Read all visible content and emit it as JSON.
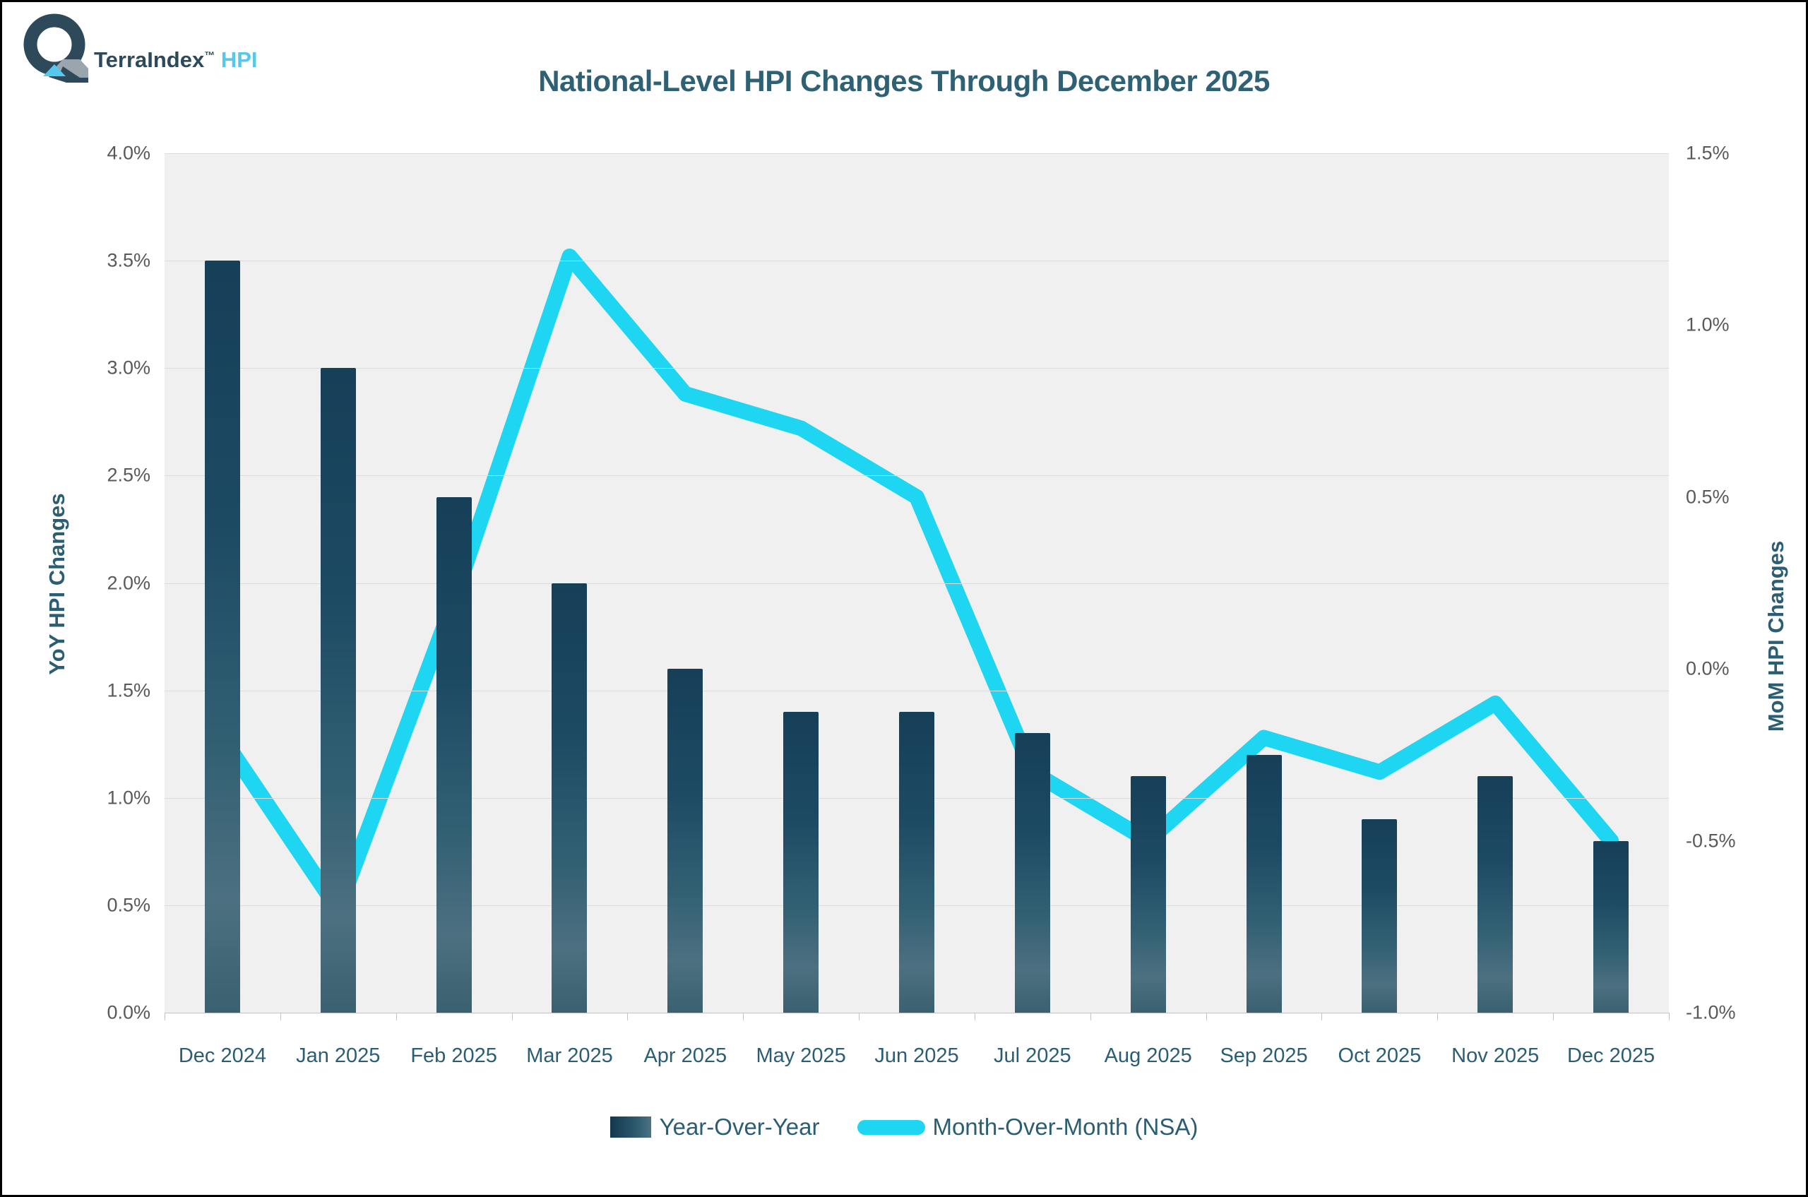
{
  "logo": {
    "brand": "TerraIndex",
    "tm": "™",
    "product": "HPI"
  },
  "title": "National-Level HPI Changes Through December 2025",
  "chart_data": {
    "type": "combo",
    "categories": [
      "Dec 2024",
      "Jan 2025",
      "Feb 2025",
      "Mar 2025",
      "Apr 2025",
      "May 2025",
      "Jun 2025",
      "Jul 2025",
      "Aug 2025",
      "Sep 2025",
      "Oct 2025",
      "Nov 2025",
      "Dec 2025"
    ],
    "series": [
      {
        "name": "Year-Over-Year",
        "type": "bar",
        "axis": "left",
        "values": [
          3.5,
          3.0,
          2.4,
          2.0,
          1.6,
          1.4,
          1.4,
          1.3,
          1.1,
          1.2,
          0.9,
          1.1,
          0.8
        ]
      },
      {
        "name": "Month-Over-Month (NSA)",
        "type": "line",
        "axis": "right",
        "values": [
          -0.2,
          -0.7,
          0.2,
          1.2,
          0.8,
          0.7,
          0.5,
          -0.3,
          -0.5,
          -0.2,
          -0.3,
          -0.1,
          -0.5
        ]
      }
    ],
    "left_axis": {
      "title": "YoY HPI Changes",
      "min": 0,
      "max": 4,
      "tick_labels": [
        "4.0%",
        "3.5%",
        "3.0%",
        "2.5%",
        "2.0%",
        "1.5%",
        "1.0%",
        "0.5%",
        "0.0%"
      ]
    },
    "right_axis": {
      "title": "MoM HPI Changes",
      "min": -1,
      "max": 1.5,
      "tick_labels": [
        "1.5%",
        "1.0%",
        "0.5%",
        "0.0%",
        "-0.5%",
        "-1.0%"
      ]
    },
    "grid": true,
    "legend_position": "bottom",
    "colors": {
      "bar_top": "#163f58",
      "bar_bottom": "#3a6170",
      "line": "#1ed5f2",
      "plot_bg": "#f0f0f0",
      "grid": "#dcdcdc",
      "title": "#2f6175",
      "tick_text": "#595959",
      "category_text": "#2b5e72",
      "logo_dark": "#2e4a5a",
      "logo_cyan": "#55c8ec",
      "logo_gray": "#9aa5ad"
    }
  },
  "legend": {
    "items": [
      {
        "label": "Year-Over-Year",
        "swatch": "bar"
      },
      {
        "label": "Month-Over-Month (NSA)",
        "swatch": "line"
      }
    ]
  }
}
